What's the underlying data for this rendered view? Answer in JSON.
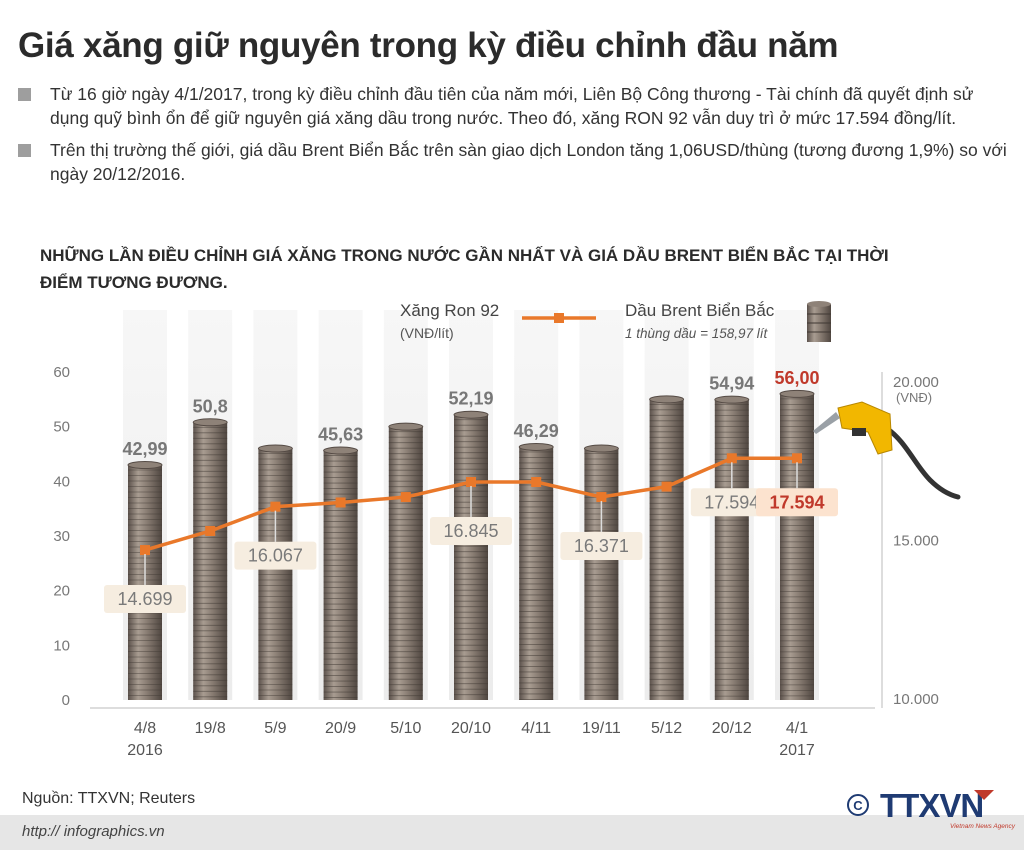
{
  "header": {
    "title": "Giá xăng giữ nguyên trong kỳ điều chỉnh đầu năm"
  },
  "bullets": [
    "Từ 16 giờ ngày 4/1/2017, trong kỳ điều chỉnh đầu tiên của năm mới, Liên Bộ Công thương - Tài chính đã quyết định sử dụng quỹ bình ổn để giữ nguyên giá xăng dầu trong nước. Theo đó, xăng RON 92 vẫn duy trì ở mức 17.594 đồng/lít.",
    "Trên thị trường thế giới, giá dầu Brent Biển Bắc trên sàn giao dịch London tăng 1,06USD/thùng (tương đương 1,9%) so với ngày 20/12/2016."
  ],
  "chart_heading": "NHỮNG LẦN ĐIỀU CHỈNH GIÁ XĂNG TRONG NƯỚC GẦN NHẤT VÀ GIÁ DẦU BRENT BIỂN BẮC TẠI THỜI ĐIỂM TƯƠNG ĐƯƠNG.",
  "footer": {
    "source": "Nguồn: TTXVN; Reuters",
    "url": "http:// infographics.vn",
    "copyright": "©",
    "brand": "TTXVN",
    "brand_sub": "Vietnam News Agency"
  },
  "colors": {
    "line": "#e9782a",
    "highlight_text": "#c0392b",
    "barrel_dark": "#6b5f57",
    "barrel_light": "#b3a79c",
    "label_box": "#f6ede0",
    "nozzle": "#f2b700"
  },
  "icons": [
    "barrel-icon",
    "fuel-nozzle-icon"
  ],
  "chart_data": {
    "type": "bar",
    "categories": [
      "4/8\n2016",
      "19/8",
      "5/9",
      "20/9",
      "5/10",
      "20/10",
      "4/11",
      "19/11",
      "5/12",
      "20/12",
      "4/1\n2017"
    ],
    "series": [
      {
        "name": "Dầu Brent Biển Bắc",
        "subtitle": "1 thùng dầu = 158,97 lít",
        "axis": "left",
        "values": [
          42.99,
          50.8,
          46.0,
          45.63,
          50.0,
          52.19,
          46.29,
          46.0,
          55.0,
          54.94,
          56.0
        ],
        "labels": [
          "42,99",
          "50,8",
          "",
          "45,63",
          "",
          "52,19",
          "46,29",
          "",
          "",
          "54,94",
          "56,00"
        ]
      },
      {
        "name": "Xăng Ron 92",
        "unit": "(VNĐ/lít)",
        "axis": "right",
        "type": "line",
        "values": [
          14699,
          15300,
          16067,
          16200,
          16371,
          16845,
          16845,
          16371,
          16700,
          17594,
          17594
        ],
        "labels": [
          "14.699",
          "",
          "16.067",
          "",
          "",
          "16.845",
          "",
          "16.371",
          "",
          "17.594",
          "17.594"
        ]
      }
    ],
    "y_left": {
      "range": [
        0,
        60
      ],
      "ticks": [
        "0",
        "10",
        "20",
        "30",
        "40",
        "50",
        "60"
      ]
    },
    "y_right": {
      "range": [
        10000,
        20000
      ],
      "ticks": [
        "10.000",
        "15.000",
        "20.000"
      ],
      "unit": "(VNĐ)"
    },
    "highlight_index": 10
  }
}
